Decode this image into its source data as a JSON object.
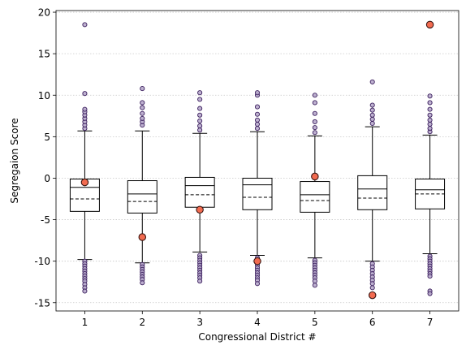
{
  "chart_data": {
    "type": "box",
    "title": "",
    "xlabel": "Congressional District #",
    "ylabel": "Segregaion Score",
    "ylim": [
      -16,
      20.2
    ],
    "yticks": [
      -15,
      -10,
      -5,
      0,
      5,
      10,
      15,
      20
    ],
    "grid": "horizontal, dotted",
    "colors": {
      "box_edge": "#000000",
      "median": "#000000",
      "mean": "#000000",
      "flier_fill": "#b3a3c8",
      "flier_edge": "#3b1f5e",
      "highlight_fill": "#f26b50",
      "highlight_edge": "#3a1410",
      "grid": "#c8c8c8"
    },
    "categories": [
      "1",
      "2",
      "3",
      "4",
      "5",
      "6",
      "7"
    ],
    "boxes": [
      {
        "district": "1",
        "whislo": -9.8,
        "q1": -4.0,
        "med": -1.1,
        "q3": -0.1,
        "whishi": 5.7,
        "mean": -2.5,
        "highlight": -0.5,
        "fliers_low": [
          -10.0,
          -10.3,
          -10.6,
          -10.9,
          -11.2,
          -11.5,
          -11.8,
          -12.1,
          -12.4,
          -12.8,
          -13.2,
          -13.6
        ],
        "fliers_high": [
          6.0,
          6.4,
          6.8,
          7.2,
          7.6,
          8.0,
          8.3,
          10.2,
          18.5
        ]
      },
      {
        "district": "2",
        "whislo": -10.2,
        "q1": -4.2,
        "med": -1.9,
        "q3": -0.3,
        "whishi": 5.7,
        "mean": -2.8,
        "highlight": -7.1,
        "fliers_low": [
          -10.4,
          -10.7,
          -11.0,
          -11.3,
          -11.6,
          -11.9,
          -12.2,
          -12.6
        ],
        "fliers_high": [
          6.4,
          6.8,
          7.2,
          7.8,
          8.5,
          9.1,
          10.8
        ]
      },
      {
        "district": "3",
        "whislo": -8.9,
        "q1": -3.5,
        "med": -0.9,
        "q3": 0.1,
        "whishi": 5.4,
        "mean": -2.0,
        "highlight": -3.8,
        "fliers_low": [
          -9.3,
          -9.6,
          -9.9,
          -10.2,
          -10.5,
          -10.8,
          -11.1,
          -11.4,
          -11.7,
          -12.0,
          -12.4
        ],
        "fliers_high": [
          5.8,
          6.3,
          6.9,
          7.6,
          8.4,
          9.5,
          10.3
        ]
      },
      {
        "district": "4",
        "whislo": -9.3,
        "q1": -3.8,
        "med": -0.8,
        "q3": 0.0,
        "whishi": 5.6,
        "mean": -2.3,
        "highlight": -10.0,
        "fliers_low": [
          -9.6,
          -9.9,
          -10.2,
          -10.5,
          -10.8,
          -11.1,
          -11.4,
          -11.7,
          -12.0,
          -12.3,
          -12.7
        ],
        "fliers_high": [
          6.0,
          6.5,
          7.0,
          7.7,
          8.6,
          10.0,
          10.3
        ]
      },
      {
        "district": "5",
        "whislo": -9.6,
        "q1": -4.1,
        "med": -2.0,
        "q3": -0.4,
        "whishi": 5.1,
        "mean": -2.7,
        "highlight": 0.2,
        "fliers_low": [
          -9.9,
          -10.2,
          -10.5,
          -10.8,
          -11.1,
          -11.4,
          -11.7,
          -12.0,
          -12.4,
          -12.9
        ],
        "fliers_high": [
          5.5,
          6.1,
          6.8,
          7.8,
          9.1,
          10.0
        ]
      },
      {
        "district": "6",
        "whislo": -10.0,
        "q1": -3.8,
        "med": -1.3,
        "q3": 0.3,
        "whishi": 6.2,
        "mean": -2.4,
        "highlight": -14.1,
        "fliers_low": [
          -10.3,
          -10.7,
          -11.1,
          -11.5,
          -11.9,
          -12.3,
          -12.7,
          -13.2
        ],
        "fliers_high": [
          6.6,
          7.1,
          7.6,
          8.2,
          8.8,
          11.6
        ]
      },
      {
        "district": "7",
        "whislo": -9.1,
        "q1": -3.7,
        "med": -1.4,
        "q3": -0.1,
        "whishi": 5.2,
        "mean": -1.9,
        "highlight": 18.5,
        "fliers_low": [
          -9.4,
          -9.7,
          -10.0,
          -10.3,
          -10.6,
          -10.9,
          -11.2,
          -11.5,
          -11.8,
          -13.6,
          -13.9
        ],
        "fliers_high": [
          5.6,
          6.0,
          6.5,
          7.0,
          7.6,
          8.3,
          9.1,
          9.9
        ]
      }
    ]
  }
}
